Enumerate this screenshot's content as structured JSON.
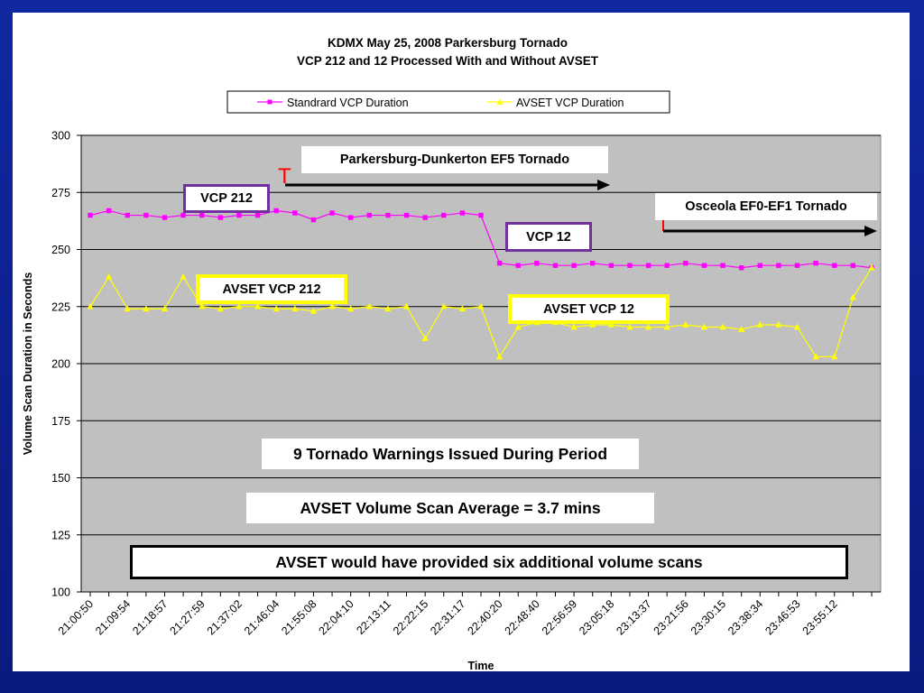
{
  "chart_data": {
    "type": "line",
    "title": "KDMX May 25, 2008 Parkersburg Tornado",
    "subtitle": "VCP 212 and 12 Processed With and Without AVSET",
    "xlabel": "Time",
    "ylabel": "Volume Scan Duration in Seconds",
    "ylim": [
      100,
      300
    ],
    "yticks": [
      "100",
      "125",
      "150",
      "175",
      "200",
      "225",
      "250",
      "275",
      "300"
    ],
    "xtick_labels": [
      "21:00:50",
      "21:09:54",
      "21:18:57",
      "21:27:59",
      "21:37:02",
      "21:46:04",
      "21:55:08",
      "22:04:10",
      "22:13:11",
      "22:22:15",
      "22:31:17",
      "22:40:20",
      "22:48:40",
      "22:56:59",
      "23:05:18",
      "23:13:37",
      "23:21:56",
      "23:30:15",
      "23:38:34",
      "23:46:53",
      "23:55:12"
    ],
    "grid": true,
    "legend_position": "top",
    "series": [
      {
        "name": "Standrard VCP Duration",
        "color": "#ff00ff",
        "marker": "square",
        "values": [
          265,
          267,
          265,
          265,
          264,
          265,
          265,
          264,
          265,
          265,
          267,
          266,
          263,
          266,
          264,
          265,
          265,
          265,
          264,
          265,
          266,
          265,
          244,
          243,
          244,
          243,
          243,
          244,
          243,
          243,
          243,
          243,
          244,
          243,
          243,
          242,
          243,
          243,
          243,
          244,
          243,
          243,
          242
        ]
      },
      {
        "name": "AVSET VCP Duration",
        "color": "#ffff00",
        "marker": "triangle",
        "values": [
          225,
          238,
          224,
          224,
          224,
          238,
          225,
          224,
          225,
          225,
          224,
          224,
          223,
          225,
          224,
          225,
          224,
          225,
          211,
          225,
          224,
          225,
          203,
          216,
          218,
          218,
          216,
          217,
          217,
          216,
          216,
          216,
          217,
          216,
          216,
          215,
          217,
          217,
          216,
          203,
          203,
          229,
          242
        ]
      }
    ],
    "annotations": {
      "parkersburg": "Parkersburg-Dunkerton EF5 Tornado",
      "osceola": "Osceola EF0-EF1 Tornado",
      "tornado_mark": "T",
      "vcp212": "VCP 212",
      "vcp12": "VCP 12",
      "avset212": "AVSET VCP 212",
      "avset12": "AVSET VCP 12",
      "warnings": "9 Tornado Warnings Issued During Period",
      "average": "AVSET Volume Scan Average = 3.7 mins",
      "additional": "AVSET would have provided six additional volume scans"
    }
  }
}
